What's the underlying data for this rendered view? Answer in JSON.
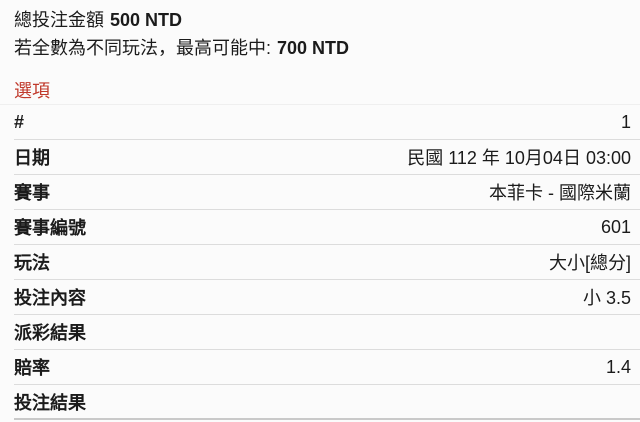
{
  "summary": {
    "total_label": "總投注金額",
    "total_value": "500 NTD",
    "note_prefix": "若全數為不同玩法，最高可能中:",
    "note_value": "700 NTD"
  },
  "section": {
    "title": "選項"
  },
  "table": {
    "rows": [
      {
        "label": "#",
        "value": "1"
      },
      {
        "label": "日期",
        "value": "民國 112 年 10月04日 03:00"
      },
      {
        "label": "賽事",
        "value": "本菲卡 - 國際米蘭"
      },
      {
        "label": "賽事編號",
        "value": "601"
      },
      {
        "label": "玩法",
        "value": "大小[總分]"
      },
      {
        "label": "投注內容",
        "value": ""
      },
      {
        "label": "派彩結果",
        "value": ""
      },
      {
        "label": "賠率",
        "value": "1.4"
      },
      {
        "label": "投注結果",
        "value": ""
      }
    ]
  },
  "bet_content_value": "小 3.5",
  "colors": {
    "accent_red": "#c0392b",
    "text": "#1b1b1b",
    "separator": "#dcdcdc",
    "background": "#fbfbfb"
  }
}
